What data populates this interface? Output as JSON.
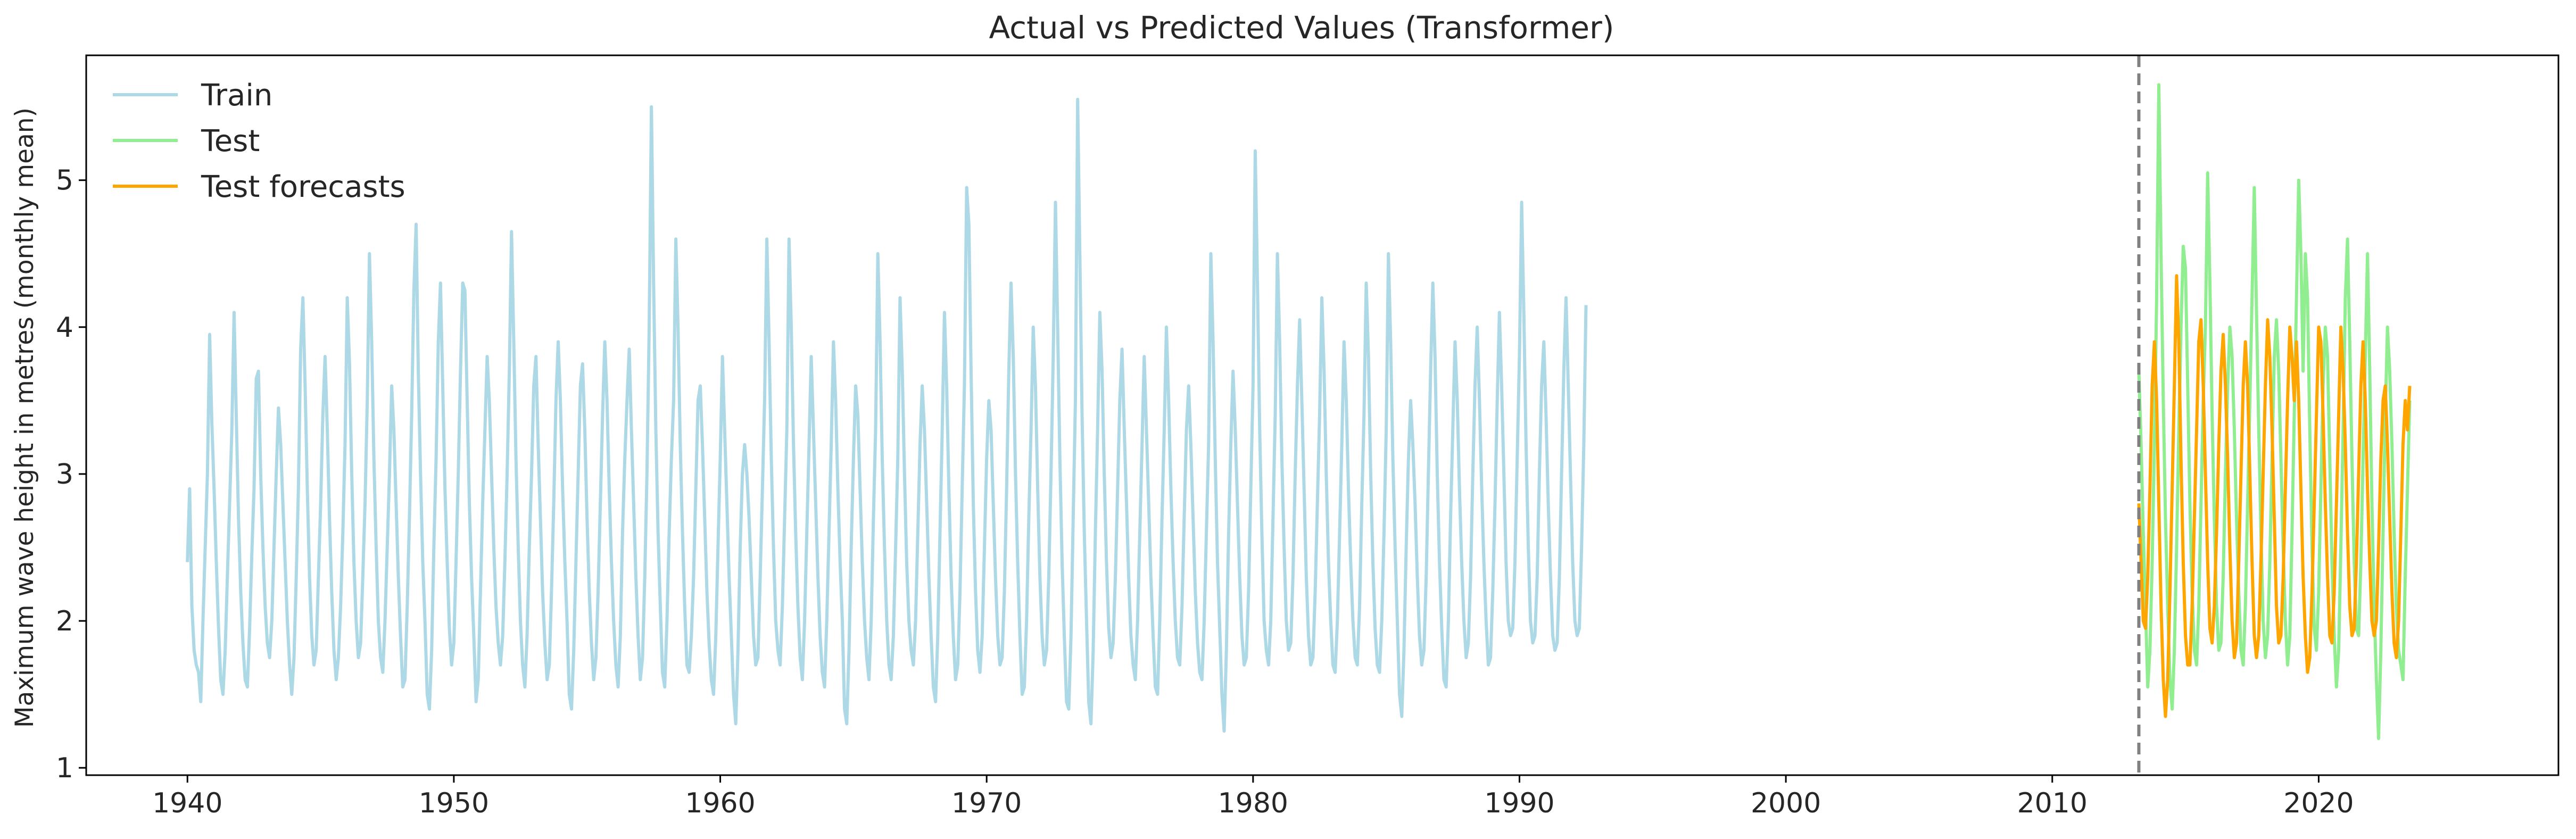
{
  "chart_data": {
    "type": "line",
    "title": "Actual vs Predicted Values (Transformer)",
    "xlabel": "",
    "ylabel": "Maximum wave height in metres (monthly mean)",
    "xlim": [
      1936.2,
      2029.0
    ],
    "ylim": [
      0.95,
      5.85
    ],
    "x_ticks": [
      1940,
      1950,
      1960,
      1970,
      1980,
      1990,
      2000,
      2010,
      2020
    ],
    "y_ticks": [
      1,
      2,
      3,
      4,
      5
    ],
    "grid": false,
    "legend_position": "top-left",
    "split_x": 2013.25,
    "series": [
      {
        "name": "Train",
        "color": "#add8e6",
        "start_year": 1940.0,
        "step_years": 0.08333,
        "values": [
          2.4,
          2.9,
          2.1,
          1.8,
          1.7,
          1.65,
          1.45,
          2.0,
          2.5,
          3.0,
          3.95,
          3.35,
          2.9,
          2.4,
          1.95,
          1.6,
          1.5,
          1.8,
          2.3,
          2.8,
          3.3,
          4.1,
          3.4,
          2.7,
          2.2,
          1.85,
          1.6,
          1.55,
          1.95,
          2.45,
          2.9,
          3.65,
          3.7,
          3.0,
          2.5,
          2.1,
          1.85,
          1.75,
          2.0,
          2.5,
          3.0,
          3.45,
          3.2,
          2.8,
          2.4,
          2.0,
          1.7,
          1.5,
          1.75,
          2.3,
          2.9,
          3.85,
          4.2,
          3.6,
          2.9,
          2.3,
          1.9,
          1.7,
          1.8,
          2.3,
          2.8,
          3.4,
          3.8,
          3.3,
          2.7,
          2.2,
          1.8,
          1.6,
          1.75,
          2.1,
          2.6,
          3.2,
          4.2,
          3.75,
          3.0,
          2.4,
          2.0,
          1.75,
          1.85,
          2.3,
          2.8,
          3.5,
          4.5,
          3.9,
          3.1,
          2.5,
          2.0,
          1.75,
          1.65,
          2.0,
          2.5,
          3.0,
          3.6,
          3.3,
          2.8,
          2.3,
          1.9,
          1.55,
          1.6,
          2.1,
          2.7,
          3.4,
          4.25,
          4.7,
          3.7,
          3.0,
          2.4,
          2.0,
          1.5,
          1.4,
          1.8,
          2.5,
          3.1,
          3.9,
          4.3,
          3.6,
          2.9,
          2.4,
          1.95,
          1.7,
          1.85,
          2.4,
          3.0,
          3.7,
          4.3,
          4.25,
          3.5,
          2.8,
          2.3,
          1.9,
          1.45,
          1.6,
          2.2,
          2.8,
          3.3,
          3.8,
          3.5,
          3.0,
          2.5,
          2.1,
          1.85,
          1.7,
          1.9,
          2.4,
          3.0,
          3.7,
          4.65,
          3.9,
          3.1,
          2.5,
          2.0,
          1.7,
          1.55,
          1.9,
          2.5,
          3.0,
          3.6,
          3.8,
          3.2,
          2.7,
          2.2,
          1.85,
          1.6,
          1.7,
          2.2,
          2.8,
          3.5,
          3.9,
          3.5,
          2.9,
          2.4,
          2.0,
          1.5,
          1.4,
          1.8,
          2.4,
          3.0,
          3.6,
          3.75,
          3.3,
          2.7,
          2.2,
          1.85,
          1.6,
          1.75,
          2.2,
          2.8,
          3.4,
          3.9,
          3.5,
          2.9,
          2.4,
          2.0,
          1.7,
          1.55,
          1.9,
          2.6,
          3.1,
          3.5,
          3.85,
          3.3,
          2.8,
          2.3,
          1.9,
          1.6,
          1.75,
          2.3,
          3.0,
          4.0,
          5.5,
          4.3,
          3.3,
          2.6,
          2.1,
          1.65,
          1.55,
          2.0,
          2.6,
          3.1,
          3.5,
          4.6,
          4.0,
          3.2,
          2.6,
          2.1,
          1.7,
          1.65,
          1.9,
          2.3,
          2.9,
          3.5,
          3.6,
          3.2,
          2.7,
          2.2,
          1.85,
          1.6,
          1.5,
          1.9,
          2.5,
          3.1,
          3.8,
          3.3,
          2.8,
          2.3,
          1.9,
          1.5,
          1.3,
          1.8,
          2.5,
          3.0,
          3.2,
          3.0,
          2.7,
          2.3,
          1.9,
          1.7,
          1.75,
          2.3,
          2.9,
          3.5,
          4.6,
          3.9,
          3.1,
          2.5,
          2.0,
          1.8,
          1.7,
          2.1,
          2.7,
          3.3,
          4.6,
          4.0,
          3.2,
          2.6,
          2.1,
          1.75,
          1.6,
          2.0,
          2.6,
          3.2,
          3.8,
          3.3,
          2.8,
          2.3,
          1.9,
          1.65,
          1.55,
          2.0,
          2.6,
          3.2,
          3.9,
          3.5,
          2.9,
          2.4,
          2.0,
          1.4,
          1.3,
          1.8,
          2.5,
          3.1,
          3.6,
          3.4,
          2.9,
          2.4,
          2.0,
          1.75,
          1.6,
          2.0,
          2.7,
          3.3,
          4.5,
          3.9,
          3.1,
          2.5,
          2.0,
          1.7,
          1.6,
          1.9,
          2.5,
          3.1,
          4.2,
          3.7,
          3.0,
          2.4,
          2.0,
          1.8,
          1.7,
          2.0,
          2.6,
          3.2,
          3.6,
          3.3,
          2.8,
          2.3,
          1.9,
          1.55,
          1.45,
          1.9,
          2.6,
          3.3,
          4.1,
          3.6,
          2.9,
          2.3,
          1.9,
          1.6,
          1.7,
          2.2,
          2.9,
          3.6,
          4.95,
          4.7,
          3.7,
          2.8,
          2.2,
          1.8,
          1.65,
          1.9,
          2.5,
          3.1,
          3.5,
          3.3,
          2.8,
          2.3,
          1.9,
          1.7,
          1.75,
          2.2,
          2.9,
          3.7,
          4.3,
          3.8,
          3.0,
          2.4,
          1.9,
          1.5,
          1.55,
          2.0,
          2.7,
          3.3,
          4.0,
          3.6,
          2.9,
          2.3,
          1.9,
          1.7,
          1.8,
          2.3,
          3.0,
          3.8,
          4.85,
          4.0,
          3.1,
          2.4,
          1.9,
          1.45,
          1.4,
          1.9,
          2.7,
          3.5,
          5.55,
          4.5,
          3.4,
          2.6,
          2.0,
          1.45,
          1.3,
          1.8,
          2.6,
          3.3,
          4.1,
          3.7,
          3.0,
          2.4,
          1.95,
          1.75,
          1.85,
          2.3,
          2.9,
          3.5,
          3.85,
          3.3,
          2.8,
          2.3,
          1.9,
          1.7,
          1.6,
          2.0,
          2.6,
          3.2,
          3.8,
          3.3,
          2.8,
          2.3,
          1.9,
          1.55,
          1.5,
          2.0,
          2.7,
          3.3,
          4.0,
          3.5,
          2.9,
          2.4,
          2.0,
          1.75,
          1.7,
          2.1,
          2.7,
          3.3,
          3.6,
          3.2,
          2.7,
          2.2,
          1.85,
          1.65,
          1.6,
          2.0,
          2.6,
          3.2,
          4.5,
          3.9,
          3.1,
          2.4,
          1.95,
          1.5,
          1.25,
          1.8,
          2.6,
          3.2,
          3.7,
          3.3,
          2.8,
          2.3,
          1.9,
          1.7,
          1.75,
          2.2,
          2.9,
          3.6,
          5.2,
          4.3,
          3.3,
          2.6,
          2.0,
          1.8,
          1.7,
          2.0,
          2.7,
          3.4,
          4.5,
          3.9,
          3.1,
          2.5,
          2.0,
          1.8,
          1.85,
          2.3,
          3.0,
          3.6,
          4.05,
          3.5,
          2.9,
          2.3,
          1.9,
          1.7,
          1.75,
          2.2,
          2.8,
          3.4,
          4.2,
          3.7,
          3.0,
          2.4,
          2.0,
          1.7,
          1.65,
          2.0,
          2.6,
          3.2,
          3.9,
          3.5,
          2.9,
          2.4,
          2.0,
          1.75,
          1.7,
          2.1,
          2.8,
          3.4,
          4.3,
          3.8,
          3.0,
          2.4,
          1.95,
          1.7,
          1.65,
          2.0,
          2.6,
          3.3,
          4.5,
          3.9,
          3.1,
          2.5,
          2.0,
          1.5,
          1.35,
          1.8,
          2.5,
          3.1,
          3.5,
          3.2,
          2.8,
          2.3,
          1.9,
          1.7,
          1.8,
          2.3,
          3.0,
          3.7,
          4.3,
          3.8,
          3.0,
          2.4,
          1.95,
          1.6,
          1.55,
          2.0,
          2.7,
          3.3,
          3.9,
          3.5,
          2.9,
          2.4,
          2.0,
          1.75,
          1.85,
          2.3,
          3.0,
          3.6,
          4.0,
          3.5,
          2.9,
          2.4,
          2.0,
          1.7,
          1.75,
          2.2,
          2.8,
          3.5,
          4.1,
          3.6,
          3.0,
          2.4,
          2.0,
          1.9,
          1.95,
          2.4,
          3.1,
          3.8,
          4.85,
          4.1,
          3.2,
          2.5,
          2.0,
          1.85,
          1.9,
          2.3,
          3.0,
          3.6,
          3.9,
          3.4,
          2.8,
          2.3,
          1.9,
          1.8,
          1.85,
          2.3,
          3.0,
          3.7,
          4.2,
          3.6,
          3.0,
          2.4,
          2.0,
          1.9,
          1.95,
          2.5,
          3.2,
          4.15
        ]
      },
      {
        "name": "Test",
        "color": "#90ee90",
        "start_year": 2013.25,
        "step_years": 0.08333,
        "values": [
          3.7,
          3.2,
          2.6,
          2.1,
          1.55,
          1.8,
          2.4,
          3.2,
          4.2,
          5.65,
          4.5,
          3.5,
          2.7,
          2.1,
          1.6,
          1.4,
          1.8,
          2.5,
          3.3,
          4.0,
          4.55,
          4.4,
          3.6,
          2.8,
          2.2,
          1.8,
          1.7,
          2.1,
          2.8,
          3.5,
          4.0,
          5.05,
          4.3,
          3.4,
          2.7,
          2.1,
          1.8,
          1.85,
          2.3,
          3.0,
          3.6,
          4.0,
          3.8,
          3.3,
          2.7,
          2.2,
          1.8,
          1.7,
          2.1,
          2.8,
          3.5,
          4.2,
          4.95,
          4.1,
          3.3,
          2.6,
          2.0,
          1.75,
          1.9,
          2.4,
          3.1,
          3.8,
          4.05,
          3.7,
          3.1,
          2.5,
          2.0,
          1.7,
          1.9,
          2.6,
          3.4,
          4.2,
          5.0,
          4.5,
          3.7,
          4.5,
          4.2,
          3.3,
          2.5,
          1.95,
          1.8,
          2.2,
          2.9,
          3.6,
          4.0,
          3.8,
          3.1,
          2.4,
          1.9,
          1.55,
          1.8,
          2.5,
          3.3,
          4.2,
          4.6,
          3.9,
          3.1,
          2.4,
          1.95,
          1.9,
          2.4,
          3.1,
          3.8,
          4.5,
          3.7,
          2.8,
          2.1,
          1.6,
          1.2,
          1.8,
          2.6,
          3.4,
          4.0,
          3.7,
          3.2,
          2.6,
          2.1,
          1.8,
          1.7,
          1.6,
          2.3,
          2.9,
          3.5
        ]
      },
      {
        "name": "Test forecasts",
        "color": "#ffa500",
        "start_year": 2013.25,
        "step_years": 0.08333,
        "values": [
          2.8,
          2.4,
          2.0,
          1.95,
          2.3,
          2.9,
          3.6,
          3.9,
          3.5,
          2.8,
          2.1,
          1.6,
          1.35,
          1.6,
          2.2,
          2.9,
          3.6,
          4.35,
          3.9,
          3.1,
          2.4,
          1.9,
          1.7,
          1.7,
          2.1,
          2.7,
          3.3,
          3.9,
          4.05,
          3.6,
          3.0,
          2.4,
          1.95,
          1.85,
          2.1,
          2.6,
          3.2,
          3.7,
          3.95,
          3.6,
          3.1,
          2.5,
          2.0,
          1.75,
          1.85,
          2.4,
          3.0,
          3.6,
          3.9,
          3.6,
          3.0,
          2.4,
          1.9,
          1.75,
          1.9,
          2.4,
          3.0,
          3.6,
          4.05,
          3.8,
          3.3,
          2.7,
          2.1,
          1.85,
          1.9,
          2.3,
          2.9,
          3.5,
          4.0,
          3.8,
          3.5,
          3.9,
          3.5,
          2.9,
          2.3,
          1.9,
          1.65,
          1.75,
          2.2,
          2.8,
          3.4,
          4.0,
          3.9,
          3.4,
          2.8,
          2.3,
          1.9,
          1.85,
          2.2,
          2.8,
          3.4,
          4.0,
          3.7,
          3.2,
          2.6,
          2.1,
          1.9,
          1.95,
          2.4,
          3.0,
          3.6,
          3.9,
          3.5,
          2.9,
          2.4,
          2.0,
          1.9,
          2.0,
          2.5,
          3.1,
          3.5,
          3.6,
          3.2,
          2.7,
          2.2,
          1.85,
          1.75,
          2.0,
          2.6,
          3.2,
          3.5,
          3.3,
          3.6
        ]
      }
    ]
  }
}
